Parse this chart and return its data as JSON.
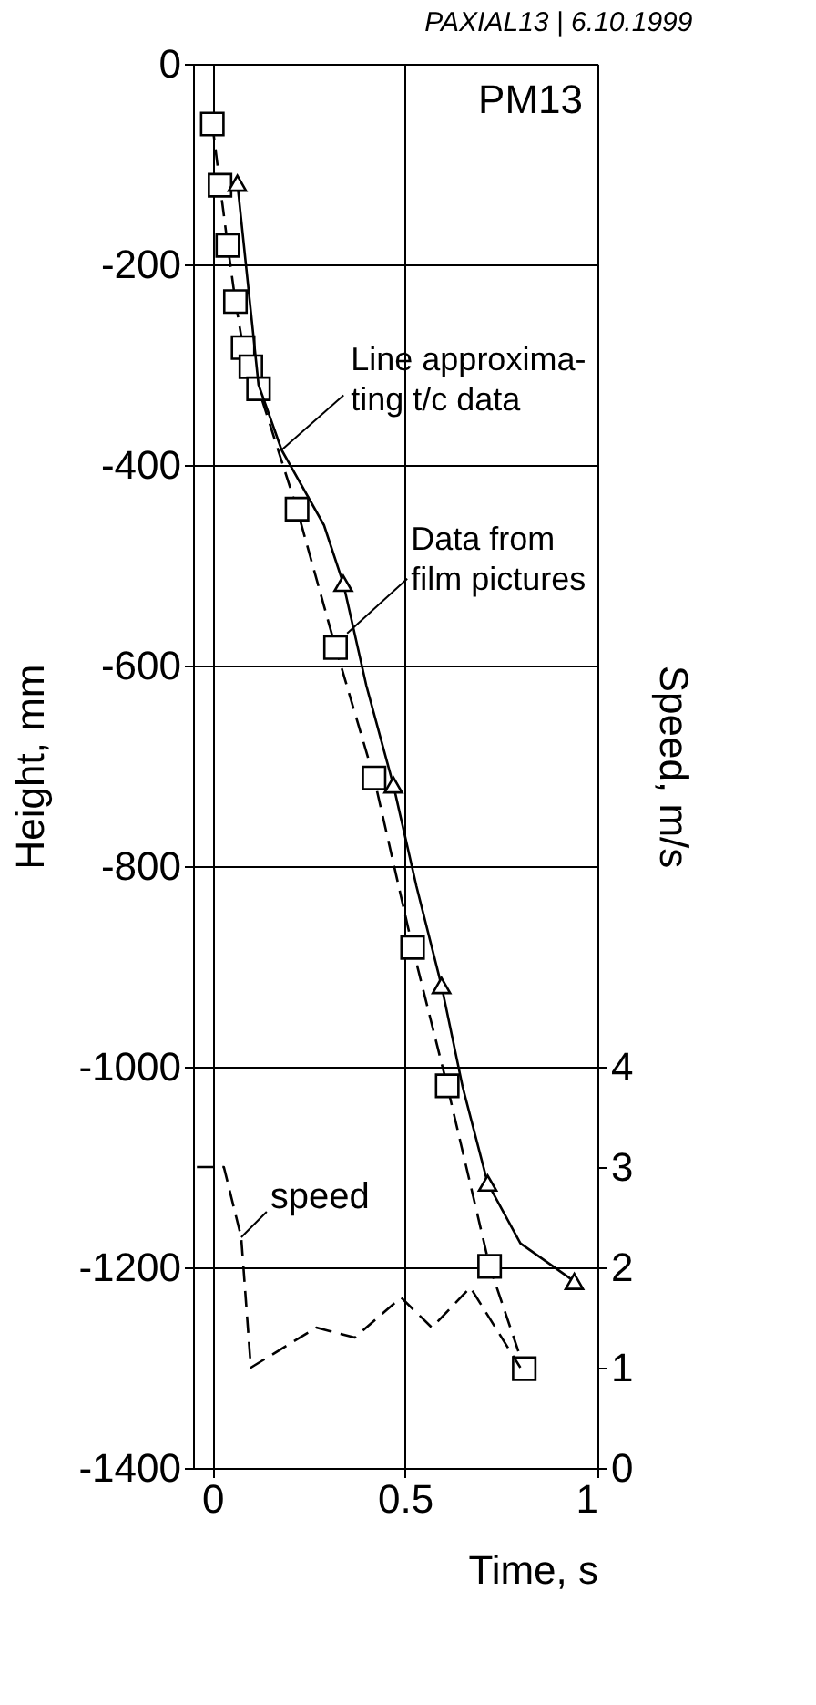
{
  "chart_data": {
    "type": "line",
    "title": "PAXIAL13 | 6.10.1999",
    "xlabel": "Time, s",
    "ylabel": "Height, mm",
    "y2label": "Speed, m/s",
    "xlim": [
      -0.05,
      1
    ],
    "xticks": [
      0,
      0.5,
      1
    ],
    "ylim": [
      -1400,
      0
    ],
    "yticks": [
      -1400,
      -1200,
      -1000,
      -800,
      -600,
      -400,
      -200,
      0
    ],
    "y2lim": [
      0,
      14
    ],
    "y2ticks": [
      0,
      1,
      2,
      3,
      4
    ],
    "grid": true,
    "series": [
      {
        "line_style": "dashed",
        "marker": "square",
        "color": "#000000",
        "x": [
          0.0,
          0.02,
          0.04,
          0.06,
          0.08,
          0.1,
          0.12,
          0.22,
          0.32,
          0.42,
          0.52,
          0.61,
          0.72,
          0.81
        ],
        "values": [
          -60,
          -121,
          -181,
          -237,
          -283,
          -302,
          -324,
          -444,
          -582,
          -712,
          -881,
          -1019,
          -1199,
          -1301
        ]
      },
      {
        "line_style": "solid",
        "marker": "none",
        "color": "#000000",
        "x": [
          0.065,
          0.12,
          0.18,
          0.29,
          0.34,
          0.4,
          0.47,
          0.53,
          0.595,
          0.65,
          0.715,
          0.8,
          0.94
        ],
        "values": [
          -119,
          -320,
          -385,
          -460,
          -518,
          -620,
          -719,
          -820,
          -919,
          -1020,
          -1116,
          -1176,
          -1214
        ]
      },
      {
        "type": "scatter",
        "marker": "triangle",
        "color": "#000000",
        "x": [
          0.065,
          0.34,
          0.47,
          0.595,
          0.715,
          0.94
        ],
        "values": [
          -119,
          -518,
          -719,
          -919,
          -1116,
          -1214
        ]
      },
      {
        "line_style": "dashed",
        "marker": "none",
        "axis": "y2",
        "name": "speed",
        "color": "#000000",
        "x": [
          -0.04,
          0.03,
          0.075,
          0.1,
          0.27,
          0.37,
          0.49,
          0.57,
          0.67,
          0.8
        ],
        "values": [
          3.0,
          3.0,
          2.3,
          1.0,
          1.4,
          1.3,
          1.7,
          1.4,
          1.8,
          1.0
        ]
      }
    ],
    "annotations": [
      "PM13",
      {
        "text": "Line approxima-\nting t/c data",
        "x": 0.18,
        "y": -385
      },
      {
        "text": "Data from\nfilm pictures",
        "x": 0.35,
        "y": -568
      }
    ]
  }
}
